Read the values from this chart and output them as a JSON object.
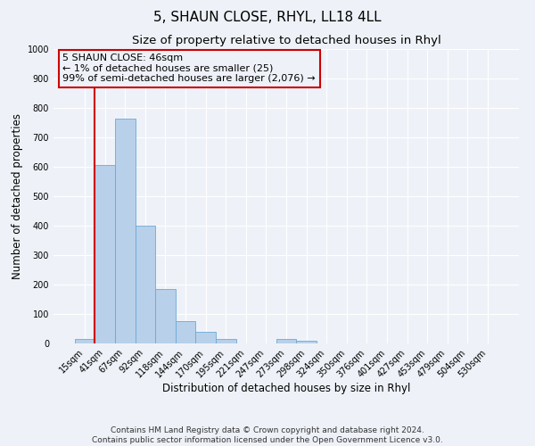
{
  "title": "5, SHAUN CLOSE, RHYL, LL18 4LL",
  "subtitle": "Size of property relative to detached houses in Rhyl",
  "xlabel": "Distribution of detached houses by size in Rhyl",
  "ylabel": "Number of detached properties",
  "bar_labels": [
    "15sqm",
    "41sqm",
    "67sqm",
    "92sqm",
    "118sqm",
    "144sqm",
    "170sqm",
    "195sqm",
    "221sqm",
    "247sqm",
    "273sqm",
    "298sqm",
    "324sqm",
    "350sqm",
    "376sqm",
    "401sqm",
    "427sqm",
    "453sqm",
    "479sqm",
    "504sqm",
    "530sqm"
  ],
  "bar_values": [
    15,
    605,
    765,
    400,
    185,
    75,
    40,
    15,
    0,
    0,
    15,
    10,
    0,
    0,
    0,
    0,
    0,
    0,
    0,
    0,
    0
  ],
  "bar_color": "#b8d0ea",
  "bar_edge_color": "#6aaad4",
  "ylim": [
    0,
    1000
  ],
  "yticks": [
    0,
    100,
    200,
    300,
    400,
    500,
    600,
    700,
    800,
    900,
    1000
  ],
  "vline_color": "#cc0000",
  "annotation_box_text": "5 SHAUN CLOSE: 46sqm\n← 1% of detached houses are smaller (25)\n99% of semi-detached houses are larger (2,076) →",
  "annotation_box_color": "#cc0000",
  "footer_line1": "Contains HM Land Registry data © Crown copyright and database right 2024.",
  "footer_line2": "Contains public sector information licensed under the Open Government Licence v3.0.",
  "background_color": "#eef2f8",
  "grid_color": "#ffffff",
  "title_fontsize": 11,
  "subtitle_fontsize": 9.5,
  "axis_label_fontsize": 8.5,
  "tick_fontsize": 7,
  "footer_fontsize": 6.5,
  "annotation_fontsize": 8
}
